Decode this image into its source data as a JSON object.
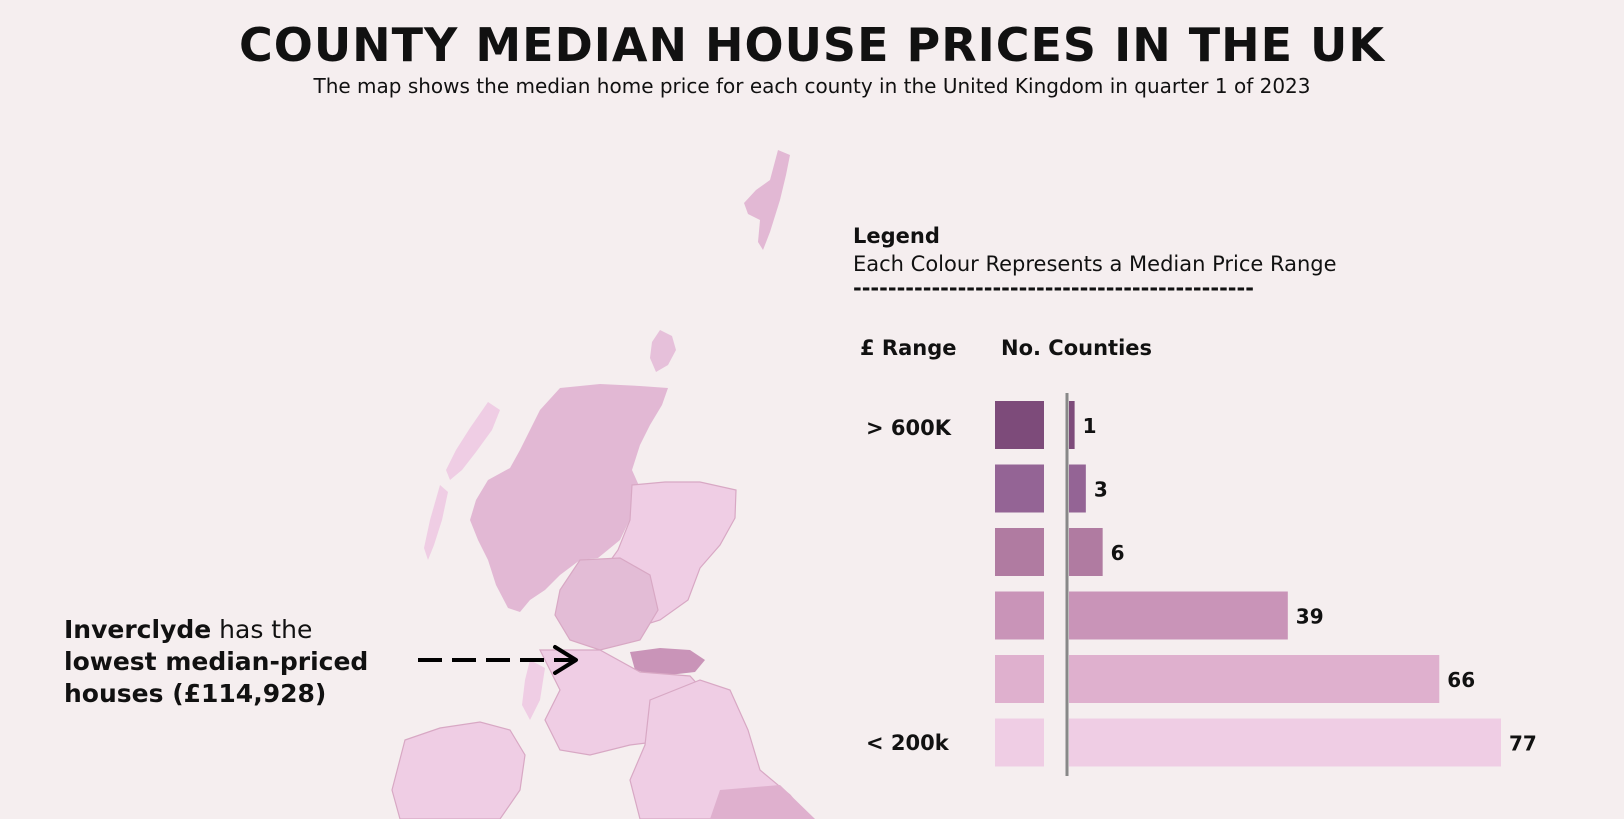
{
  "header": {
    "title": "COUNTY MEDIAN HOUSE PRICES IN THE UK",
    "subtitle": "The map shows the median home price for each county in the United Kingdom in quarter 1 of 2023"
  },
  "legend": {
    "heading": "Legend",
    "subheading": "Each Colour Represents a Median Price Range",
    "divider": "----------------------------------------------",
    "col_range": "£ Range",
    "col_counties": "No. Counties",
    "top_label": "> 600K",
    "bottom_label": "< 200k"
  },
  "annotation": {
    "place": "Inverclyde",
    "middle": " has the",
    "line2": "lowest median-priced",
    "line3": "houses (£114,928)"
  },
  "colors": {
    "background": "#f5eeef",
    "bins": [
      "#7d4b7a",
      "#946495",
      "#b07ba1",
      "#c994b8",
      "#dfb0ce",
      "#efcde4"
    ],
    "map_base": "#e7bfd8"
  },
  "chart_data": {
    "type": "bar",
    "orientation": "horizontal",
    "categories": [
      "> 600K",
      "",
      "",
      "",
      "",
      "< 200k"
    ],
    "values": [
      1,
      3,
      6,
      39,
      66,
      77
    ],
    "xlabel": "No. Counties",
    "ylabel": "£ Range"
  }
}
